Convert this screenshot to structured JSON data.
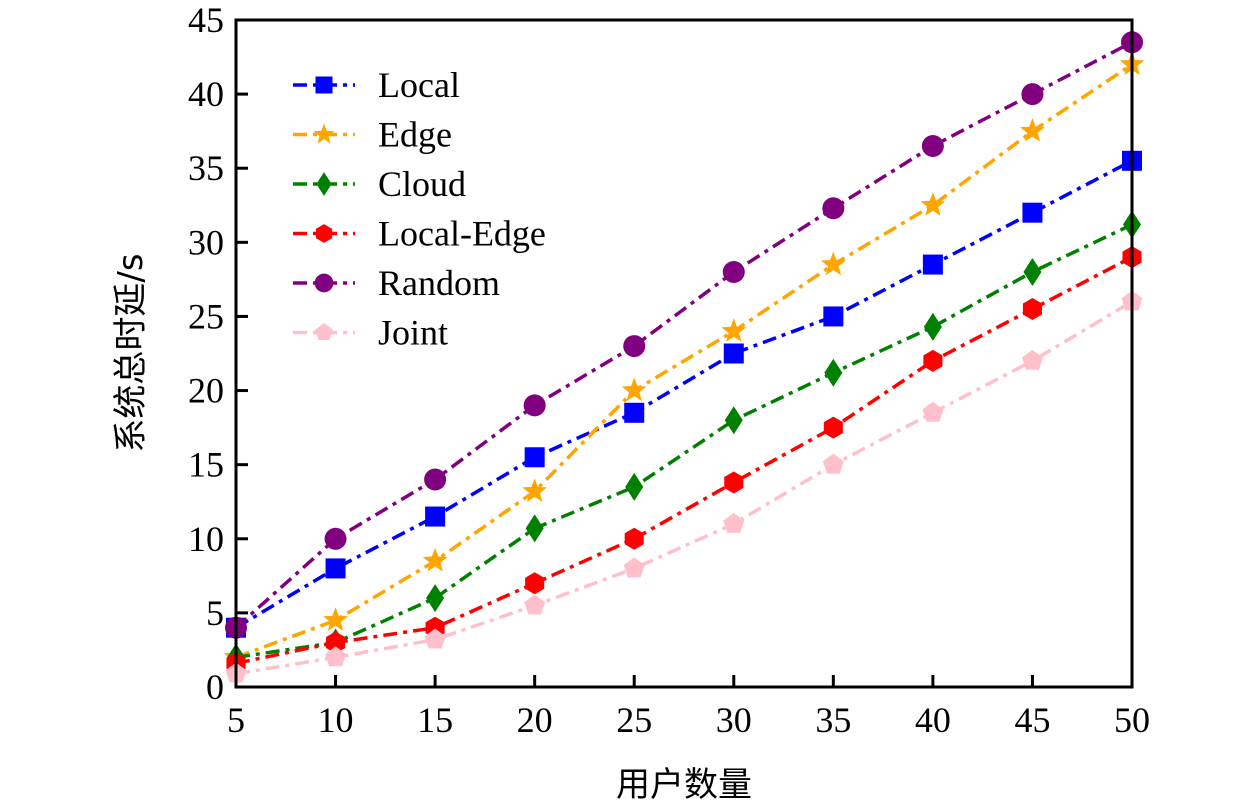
{
  "chart_data": {
    "type": "line",
    "title": "",
    "xlabel": "用户数量",
    "ylabel": "系统总时延/s",
    "x": [
      5,
      10,
      15,
      20,
      25,
      30,
      35,
      40,
      45,
      50
    ],
    "xlim": [
      5,
      50
    ],
    "ylim": [
      0,
      45
    ],
    "xticks": [
      5,
      10,
      15,
      20,
      25,
      30,
      35,
      40,
      45,
      50
    ],
    "yticks": [
      0,
      5,
      10,
      15,
      20,
      25,
      30,
      35,
      40,
      45
    ],
    "grid": false,
    "legend_position": "top-left",
    "series": [
      {
        "name": "Local",
        "color": "#0000ff",
        "marker": "square",
        "values": [
          4,
          8,
          11.5,
          15.5,
          18.5,
          22.5,
          25,
          28.5,
          32,
          35.5
        ]
      },
      {
        "name": "Edge",
        "color": "#ffa500",
        "marker": "star",
        "values": [
          2,
          4.5,
          8.5,
          13.2,
          20,
          24,
          28.5,
          32.5,
          37.5,
          42
        ]
      },
      {
        "name": "Cloud",
        "color": "#008000",
        "marker": "diamond",
        "values": [
          2,
          3,
          6,
          10.7,
          13.5,
          18,
          21.2,
          24.3,
          28,
          31.2
        ]
      },
      {
        "name": "Local-Edge",
        "color": "#ff0000",
        "marker": "hexagon",
        "values": [
          1.6,
          3,
          4,
          7,
          10,
          13.8,
          17.5,
          22,
          25.5,
          29
        ]
      },
      {
        "name": "Random",
        "color": "#800080",
        "marker": "circle",
        "values": [
          4,
          10,
          14,
          19,
          23,
          28,
          32.3,
          36.5,
          40,
          43.5
        ]
      },
      {
        "name": "Joint",
        "color": "#ffc0cb",
        "marker": "pentagon",
        "values": [
          0.9,
          2,
          3.2,
          5.5,
          8,
          11,
          15,
          18.5,
          22,
          26
        ]
      }
    ]
  }
}
